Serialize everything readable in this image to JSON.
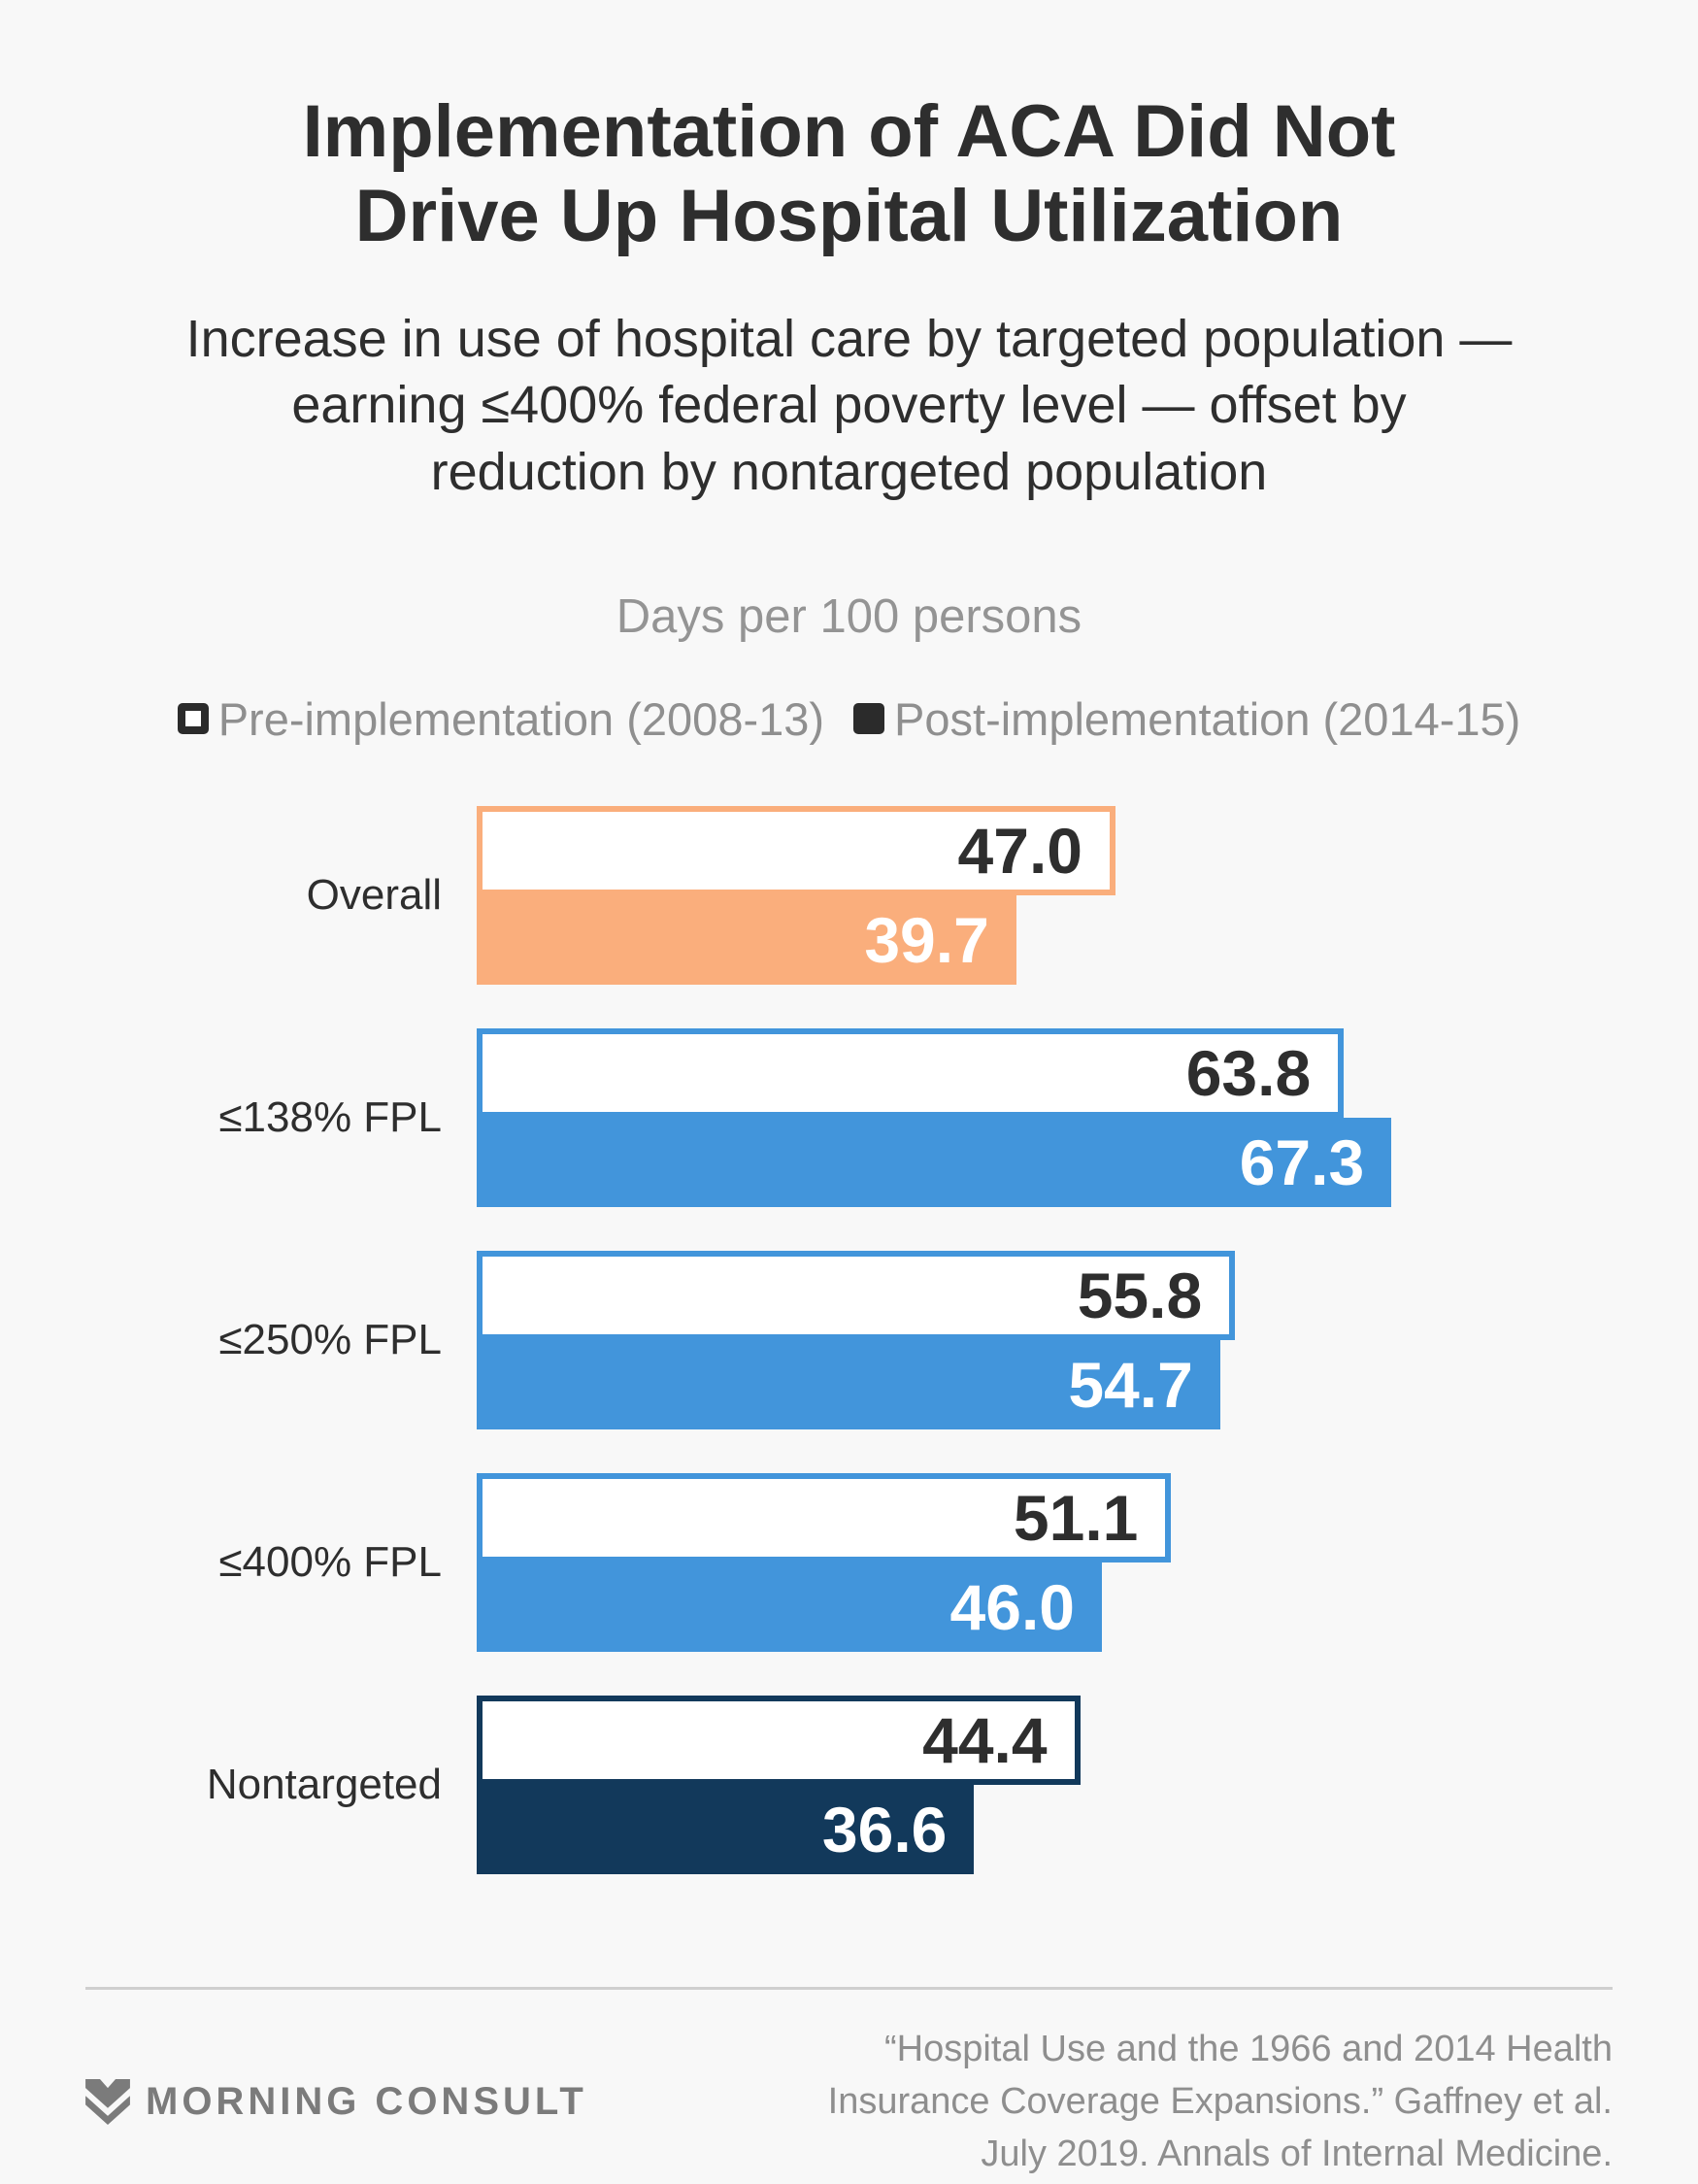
{
  "header": {
    "title_lines": [
      "Implementation of ACA Did Not",
      "Drive Up Hospital Utilization"
    ],
    "subtitle_lines": [
      "Increase in use of hospital care by targeted population —",
      "earning ≤400% federal poverty level — offset by",
      "reduction by nontargeted population"
    ],
    "axis_note": "Days per 100 persons"
  },
  "legend": {
    "pre_label": "Pre-implementation (2008-13)",
    "post_label": "Post-implementation (2014-15)",
    "marker_color": "#2b2b2b"
  },
  "chart_data": {
    "type": "bar",
    "orientation": "horizontal",
    "title": "Implementation of ACA Did Not Drive Up Hospital Utilization",
    "unit_label": "Days per 100 persons",
    "categories": [
      "Overall",
      "≤138% FPL",
      "≤250% FPL",
      "≤400% FPL",
      "Nontargeted"
    ],
    "series": [
      {
        "name": "Pre-implementation (2008-13)",
        "style": "outlined",
        "values": [
          47.0,
          63.8,
          55.8,
          51.1,
          44.4
        ]
      },
      {
        "name": "Post-implementation (2014-15)",
        "style": "filled",
        "values": [
          39.7,
          67.3,
          54.7,
          46.0,
          36.6
        ]
      }
    ],
    "rows": [
      {
        "label": "Overall",
        "pre": "47.0",
        "post": "39.7",
        "color": "#FAAE7C"
      },
      {
        "label": "≤138% FPL",
        "pre": "63.8",
        "post": "67.3",
        "color": "#4295DB"
      },
      {
        "label": "≤250% FPL",
        "pre": "55.8",
        "post": "54.7",
        "color": "#4295DB"
      },
      {
        "label": "≤400% FPL",
        "pre": "51.1",
        "post": "46.0",
        "color": "#4295DB"
      },
      {
        "label": "Nontargeted",
        "pre": "44.4",
        "post": "36.6",
        "color": "#12395B"
      }
    ],
    "xlim": [
      0,
      67.3
    ],
    "grid": false,
    "value_labels": true,
    "legend_position": "top"
  },
  "footer": {
    "logo_text": "MORNING CONSULT",
    "citation_lines": [
      "“Hospital Use and the 1966 and 2014 Health",
      "Insurance Coverage Expansions.” Gaffney et al.",
      "July 2019. Annals of Internal Medicine."
    ]
  }
}
